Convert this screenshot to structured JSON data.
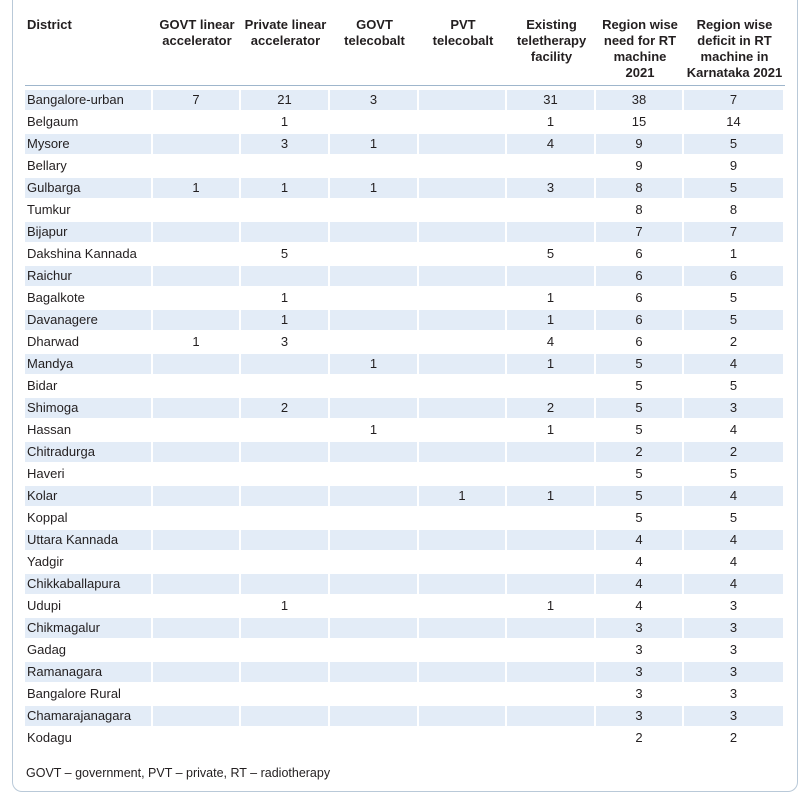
{
  "table": {
    "headers": [
      "District",
      "GOVT linear accelerator",
      "Private linear accelerator",
      "GOVT telecobalt",
      "PVT telecobalt",
      "Existing teletherapy facility",
      "Region wise need for RT machine 2021",
      "Region wise deficit in RT machine in Karnataka 2021"
    ],
    "rows": [
      [
        "Bangalore-urban",
        "7",
        "21",
        "3",
        "",
        "31",
        "38",
        "7"
      ],
      [
        "Belgaum",
        "",
        "1",
        "",
        "",
        "1",
        "15",
        "14"
      ],
      [
        "Mysore",
        "",
        "3",
        "1",
        "",
        "4",
        "9",
        "5"
      ],
      [
        "Bellary",
        "",
        "",
        "",
        "",
        "",
        "9",
        "9"
      ],
      [
        "Gulbarga",
        "1",
        "1",
        "1",
        "",
        "3",
        "8",
        "5"
      ],
      [
        "Tumkur",
        "",
        "",
        "",
        "",
        "",
        "8",
        "8"
      ],
      [
        "Bijapur",
        "",
        "",
        "",
        "",
        "",
        "7",
        "7"
      ],
      [
        "Dakshina Kannada",
        "",
        "5",
        "",
        "",
        "5",
        "6",
        "1"
      ],
      [
        "Raichur",
        "",
        "",
        "",
        "",
        "",
        "6",
        "6"
      ],
      [
        "Bagalkote",
        "",
        "1",
        "",
        "",
        "1",
        "6",
        "5"
      ],
      [
        "Davanagere",
        "",
        "1",
        "",
        "",
        "1",
        "6",
        "5"
      ],
      [
        "Dharwad",
        "1",
        "3",
        "",
        "",
        "4",
        "6",
        "2"
      ],
      [
        "Mandya",
        "",
        "",
        "1",
        "",
        "1",
        "5",
        "4"
      ],
      [
        "Bidar",
        "",
        "",
        "",
        "",
        "",
        "5",
        "5"
      ],
      [
        "Shimoga",
        "",
        "2",
        "",
        "",
        "2",
        "5",
        "3"
      ],
      [
        "Hassan",
        "",
        "",
        "1",
        "",
        "1",
        "5",
        "4"
      ],
      [
        "Chitradurga",
        "",
        "",
        "",
        "",
        "",
        "2",
        "2"
      ],
      [
        "Haveri",
        "",
        "",
        "",
        "",
        "",
        "5",
        "5"
      ],
      [
        "Kolar",
        "",
        "",
        "",
        "1",
        "1",
        "5",
        "4"
      ],
      [
        "Koppal",
        "",
        "",
        "",
        "",
        "",
        "5",
        "5"
      ],
      [
        "Uttara Kannada",
        "",
        "",
        "",
        "",
        "",
        "4",
        "4"
      ],
      [
        "Yadgir",
        "",
        "",
        "",
        "",
        "",
        "4",
        "4"
      ],
      [
        "Chikkaballapura",
        "",
        "",
        "",
        "",
        "",
        "4",
        "4"
      ],
      [
        "Udupi",
        "",
        "1",
        "",
        "",
        "1",
        "4",
        "3"
      ],
      [
        "Chikmagalur",
        "",
        "",
        "",
        "",
        "",
        "3",
        "3"
      ],
      [
        "Gadag",
        "",
        "",
        "",
        "",
        "",
        "3",
        "3"
      ],
      [
        "Ramanagara",
        "",
        "",
        "",
        "",
        "",
        "3",
        "3"
      ],
      [
        "Bangalore Rural",
        "",
        "",
        "",
        "",
        "",
        "3",
        "3"
      ],
      [
        "Chamarajanagara",
        "",
        "",
        "",
        "",
        "",
        "3",
        "3"
      ],
      [
        "Kodagu",
        "",
        "",
        "",
        "",
        "",
        "2",
        "2"
      ]
    ]
  },
  "footnote": "GOVT – government, PVT – private, RT – radiotherapy",
  "colors": {
    "row_shade": "#e3ecf7",
    "border": "#b9c9d8"
  }
}
